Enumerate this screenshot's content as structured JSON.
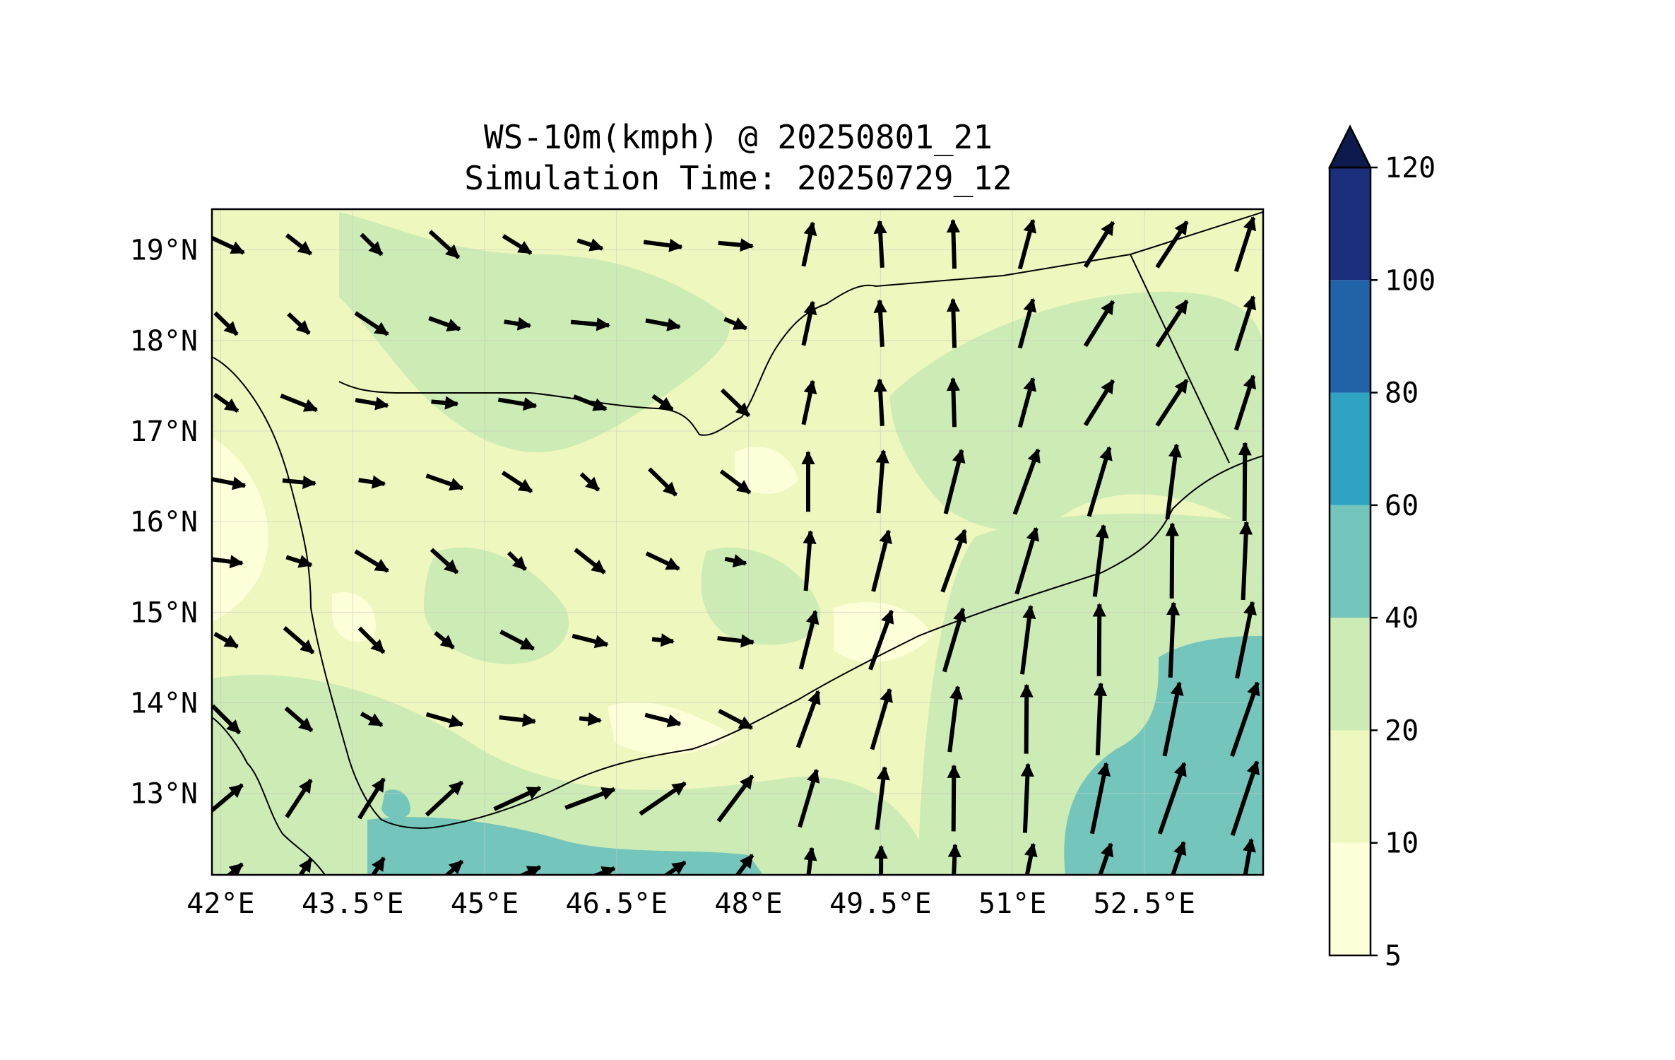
{
  "figure": {
    "title_line1": "WS-10m(kmph) @ 20250801_21",
    "title_line2": "Simulation Time: 20250729_12"
  },
  "map": {
    "extent_lon": [
      41.9,
      53.85
    ],
    "extent_lat": [
      12.1,
      19.45
    ],
    "lon_ticks": [
      {
        "value": 42.0,
        "label": "42°E"
      },
      {
        "value": 43.5,
        "label": "43.5°E"
      },
      {
        "value": 45.0,
        "label": "45°E"
      },
      {
        "value": 46.5,
        "label": "46.5°E"
      },
      {
        "value": 48.0,
        "label": "48°E"
      },
      {
        "value": 49.5,
        "label": "49.5°E"
      },
      {
        "value": 51.0,
        "label": "51°E"
      },
      {
        "value": 52.5,
        "label": "52.5°E"
      }
    ],
    "lat_ticks": [
      {
        "value": 19,
        "label": "19°N"
      },
      {
        "value": 18,
        "label": "18°N"
      },
      {
        "value": 17,
        "label": "17°N"
      },
      {
        "value": 16,
        "label": "16°N"
      },
      {
        "value": 15,
        "label": "15°N"
      },
      {
        "value": 14,
        "label": "14°N"
      },
      {
        "value": 13,
        "label": "13°N"
      }
    ],
    "grid": true
  },
  "colorbar": {
    "levels": [
      {
        "value": 5,
        "label": "5"
      },
      {
        "value": 10,
        "label": "10"
      },
      {
        "value": 20,
        "label": "20"
      },
      {
        "value": 40,
        "label": "40"
      },
      {
        "value": 60,
        "label": "60"
      },
      {
        "value": 80,
        "label": "80"
      },
      {
        "value": 100,
        "label": "100"
      },
      {
        "value": 120,
        "label": "120"
      }
    ],
    "colors": [
      "#fdffd8",
      "#eef7be",
      "#cdebb4",
      "#74c6bc",
      "#2ea3c2",
      "#2163a9",
      "#1c2f7d"
    ],
    "extend_color": "#0d1a4d",
    "extend": "max"
  }
}
